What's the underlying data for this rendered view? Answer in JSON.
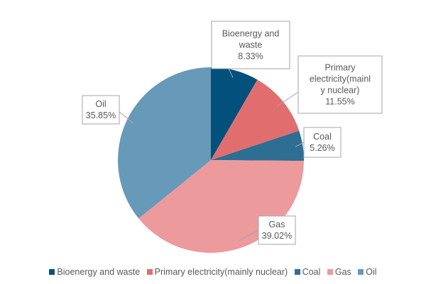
{
  "chart_data": {
    "type": "pie",
    "title": "",
    "legend_position": "bottom",
    "slices": [
      {
        "label": "Bioenergy and waste",
        "label_lines": [
          "Bioenergy and",
          "waste"
        ],
        "value": 8.33,
        "value_label": "8.33%",
        "color": "#03507d"
      },
      {
        "label": "Primary electricity(mainly nuclear)",
        "label_lines": [
          "Primary",
          "electricity(mainl",
          "y nuclear)"
        ],
        "value": 11.55,
        "value_label": "11.55%",
        "color": "#e16e6e"
      },
      {
        "label": "Coal",
        "label_lines": [
          "Coal"
        ],
        "value": 5.26,
        "value_label": "5.26%",
        "color": "#2f6e93"
      },
      {
        "label": "Gas",
        "label_lines": [
          "Gas"
        ],
        "value": 39.02,
        "value_label": "39.02%",
        "color": "#ec9a9c"
      },
      {
        "label": "Oil",
        "label_lines": [
          "Oil"
        ],
        "value": 35.85,
        "value_label": "35.85%",
        "color": "#6799b8"
      }
    ]
  }
}
